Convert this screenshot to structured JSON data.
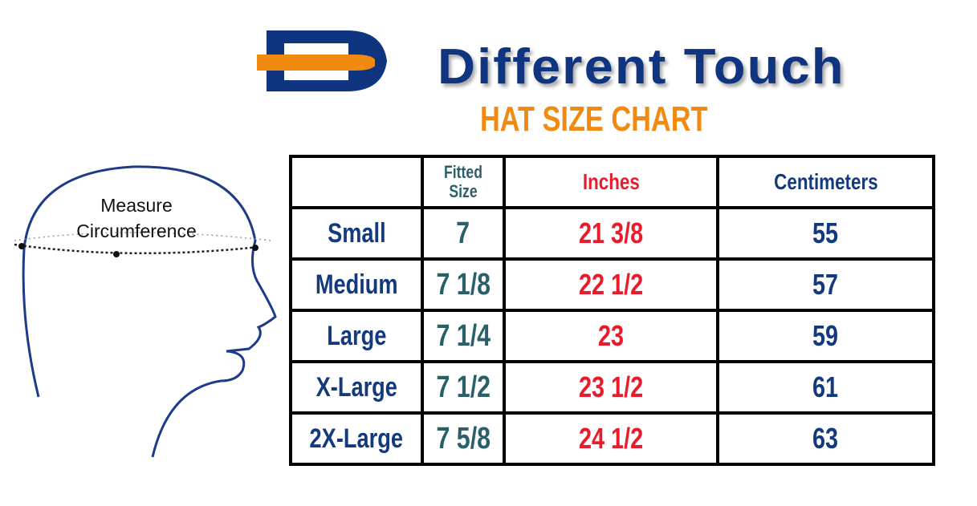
{
  "brand": {
    "name": "Different Touch",
    "colors": {
      "blue": "#0f3480",
      "orange": "#f08a10"
    }
  },
  "title": "HAT SIZE CHART",
  "illustration": {
    "label_line1": "Measure",
    "label_line2": "Circumference"
  },
  "table": {
    "headers": [
      "",
      "Fitted Size",
      "Inches",
      "Centimeters"
    ],
    "rows": [
      {
        "size": "Small",
        "fitted": "7",
        "inches": "21 3/8",
        "cm": "55"
      },
      {
        "size": "Medium",
        "fitted": "7 1/8",
        "inches": "22 1/2",
        "cm": "57"
      },
      {
        "size": "Large",
        "fitted": "7 1/4",
        "inches": "23",
        "cm": "59"
      },
      {
        "size": "X-Large",
        "fitted": "7 1/2",
        "inches": "23 1/2",
        "cm": "61"
      },
      {
        "size": "2X-Large",
        "fitted": "7 5/8",
        "inches": "24 1/2",
        "cm": "63"
      }
    ]
  }
}
